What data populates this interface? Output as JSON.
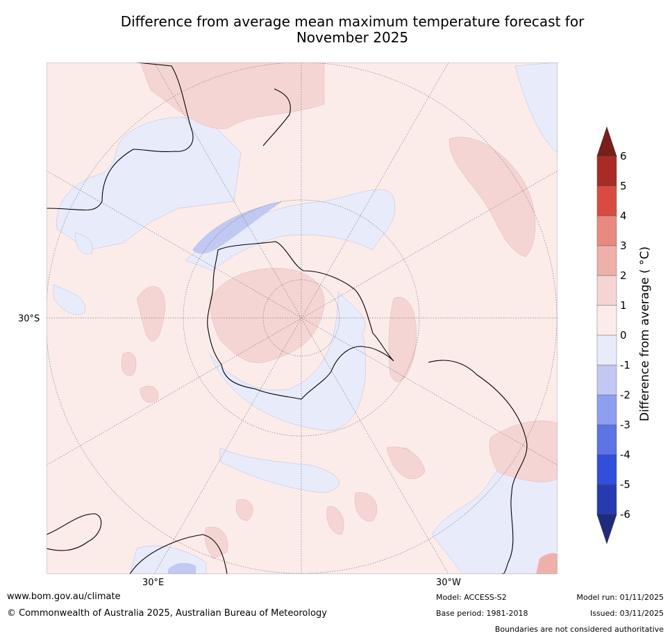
{
  "title": {
    "line1": "Difference from average mean maximum temperature forecast for",
    "line2": "November 2025"
  },
  "map": {
    "latitude_label": "30°S",
    "longitude_labels": [
      "30°E",
      "30°W"
    ]
  },
  "colorbar": {
    "label": "Difference from average ( °C)",
    "label_text": "Difference from average ( °C)",
    "ticks": [
      6,
      5,
      4,
      3,
      2,
      1,
      0,
      -1,
      -2,
      -3,
      -4,
      -5,
      -6
    ],
    "tick_labels": [
      "6",
      "5",
      "4",
      "3",
      "2",
      "1",
      "0",
      "-1",
      "-2",
      "-3",
      "-4",
      "-5",
      "-6"
    ],
    "colors": {
      "above_max": "#7a1e1a",
      "5_to_6": "#a92b24",
      "4_to_5": "#d94b40",
      "3_to_4": "#e88a80",
      "2_to_3": "#efb0aa",
      "1_to_2": "#f5d5d3",
      "0_to_1": "#fbecea",
      "m1_to_0": "#e8ebfa",
      "m2_to_m1": "#c1c8f1",
      "m3_to_m2": "#8e9ff0",
      "m4_to_m3": "#5d74e5",
      "m5_to_m4": "#2f4fdc",
      "m6_to_m5": "#263bb0",
      "below_min": "#1f2c7e"
    }
  },
  "footer": {
    "website": "www.bom.gov.au/climate",
    "copyright": "© Commonwealth of Australia 2025, Australian Bureau of Meteorology",
    "model": "Model: ACCESS-S2",
    "base_period": "Base period: 1981-2018",
    "model_run": "Model run: 01/11/2025",
    "issued": "Issued: 03/11/2025",
    "disclaimer": "Boundaries are not considered authoritative"
  }
}
